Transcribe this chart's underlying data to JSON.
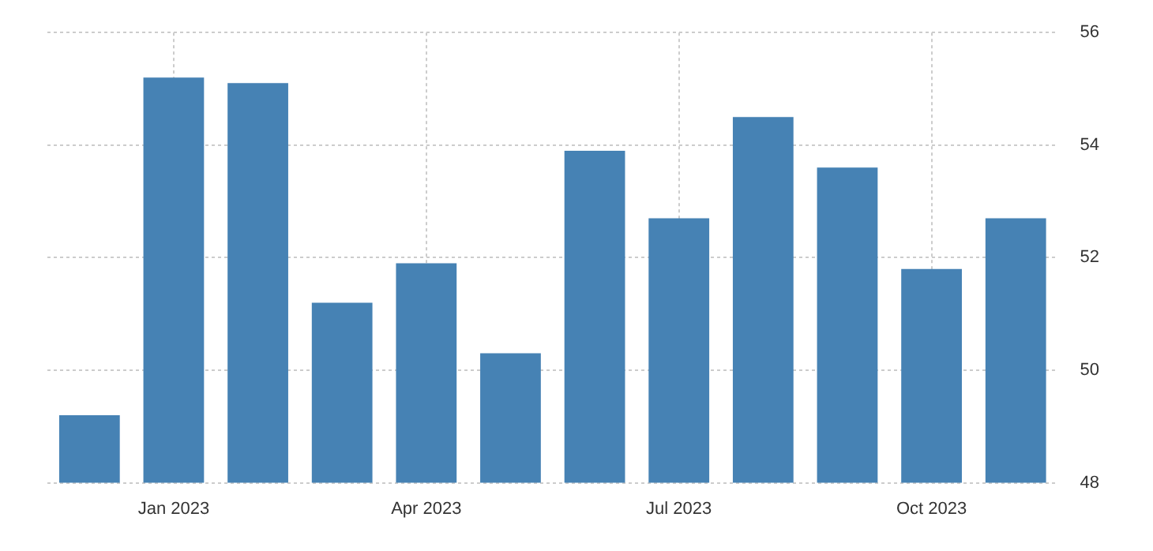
{
  "chart_data": {
    "type": "bar",
    "categories": [
      null,
      "Jan 2023",
      null,
      null,
      "Apr 2023",
      null,
      null,
      "Jul 2023",
      null,
      null,
      "Oct 2023",
      null
    ],
    "values": [
      49.2,
      55.2,
      55.1,
      51.2,
      51.9,
      50.3,
      53.9,
      52.7,
      54.5,
      53.6,
      51.8,
      52.7
    ],
    "color": "#4682b4",
    "ylim": [
      48,
      56
    ],
    "yticks": [
      48,
      50,
      52,
      54,
      56
    ],
    "grid": true
  }
}
